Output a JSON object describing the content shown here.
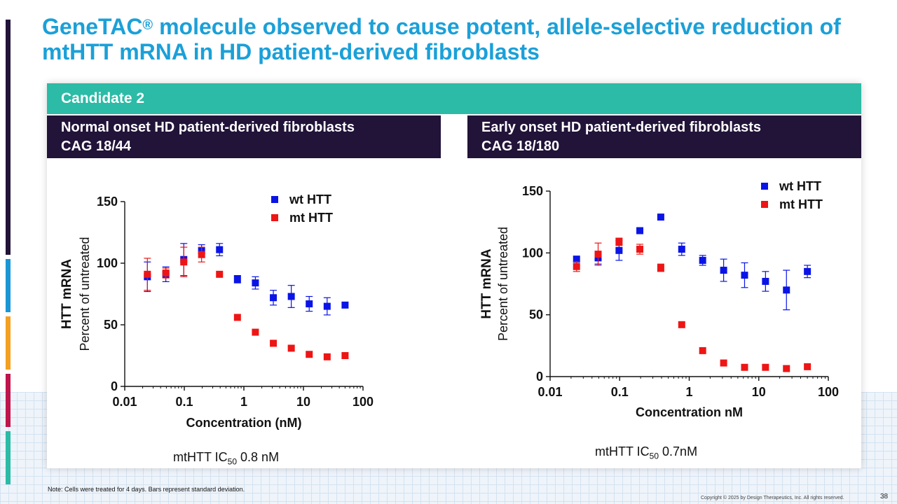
{
  "slide": {
    "title_part1": "GeneTAC",
    "title_reg": "®",
    "title_part2": " molecule observed to cause potent, allele-selective reduction of mtHTT mRNA in HD patient-derived fibroblasts",
    "candidate": "Candidate 2",
    "left_panel": {
      "line1": "Normal onset HD patient-derived fibroblasts",
      "line2": "CAG 18/44"
    },
    "right_panel": {
      "line1": "Early onset HD patient-derived fibroblasts",
      "line2": "CAG 18/180"
    },
    "left_ic50": {
      "prefix": "mtHTT IC",
      "sub": "50",
      "value": " 0.8 nM"
    },
    "right_ic50": {
      "prefix": "mtHTT IC",
      "sub": "50",
      "value": " 0.7nM"
    },
    "note": "Note: Cells were treated for 4 days. Bars represent standard deviation.",
    "copyright": "Copyright © 2025 by Design Therapeutics, Inc. All rights reserved.",
    "page_number": "38",
    "accent_colors": [
      "#221339",
      "#1b96d4",
      "#f5a020",
      "#c0154c",
      "#2bbba6"
    ]
  },
  "chart_data": [
    {
      "type": "scatter",
      "xscale": "log",
      "xlabel": "Concentration (nM)",
      "ylabel": "HTT mRNA",
      "ylabel2": "Percent of untreated",
      "xticks": [
        0.01,
        0.1,
        1,
        10,
        100
      ],
      "xtick_labels": [
        "0.01",
        "0.1",
        "1",
        "10",
        "100"
      ],
      "yticks": [
        0,
        50,
        100,
        150
      ],
      "ytick_labels": [
        "0",
        "50",
        "100",
        "150"
      ],
      "xlim": [
        0.01,
        100
      ],
      "ylim": [
        0,
        150
      ],
      "series": [
        {
          "name": "wt HTT",
          "color": "#0a14e6",
          "x": [
            0.024,
            0.049,
            0.098,
            0.195,
            0.39,
            0.78,
            1.56,
            3.125,
            6.25,
            12.5,
            25,
            50
          ],
          "y": [
            89,
            91,
            103,
            110,
            111,
            87,
            84,
            72,
            73,
            67,
            65,
            66
          ],
          "err": [
            12,
            6,
            13,
            5,
            5,
            3,
            5,
            6,
            9,
            6,
            7,
            0
          ]
        },
        {
          "name": "mt HTT",
          "color": "#ee1515",
          "x": [
            0.024,
            0.049,
            0.098,
            0.195,
            0.39,
            0.78,
            1.56,
            3.125,
            6.25,
            12.5,
            25,
            50
          ],
          "y": [
            91,
            92,
            101,
            107,
            91,
            56,
            44,
            35,
            31,
            26,
            24,
            25
          ],
          "err": [
            13,
            4,
            12,
            6,
            0,
            0,
            0,
            0,
            0,
            0,
            0,
            0
          ]
        }
      ]
    },
    {
      "type": "scatter",
      "xscale": "log",
      "xlabel": "Concentration nM",
      "ylabel": "HTT mRNA",
      "ylabel2": "Percent of untreated",
      "xticks": [
        0.01,
        0.1,
        1,
        10,
        100
      ],
      "xtick_labels": [
        "0.01",
        "0.1",
        "1",
        "10",
        "100"
      ],
      "yticks": [
        0,
        50,
        100,
        150
      ],
      "ytick_labels": [
        "0",
        "50",
        "100",
        "150"
      ],
      "xlim": [
        0.01,
        100
      ],
      "ylim": [
        0,
        150
      ],
      "series": [
        {
          "name": "wt HTT",
          "color": "#0a14e6",
          "x": [
            0.024,
            0.049,
            0.098,
            0.195,
            0.39,
            0.78,
            1.56,
            3.125,
            6.25,
            12.5,
            25,
            50
          ],
          "y": [
            95,
            96,
            102,
            118,
            129,
            103,
            94,
            86,
            82,
            77,
            70,
            85
          ],
          "err": [
            0,
            5,
            8,
            0,
            0,
            5,
            4,
            9,
            10,
            8,
            16,
            5
          ]
        },
        {
          "name": "mt HTT",
          "color": "#ee1515",
          "x": [
            0.024,
            0.049,
            0.098,
            0.195,
            0.39,
            0.78,
            1.56,
            3.125,
            6.25,
            12.5,
            25,
            50
          ],
          "y": [
            89,
            99,
            109,
            103,
            88,
            42,
            21,
            11,
            7.5,
            7.5,
            6.5,
            8
          ],
          "err": [
            4,
            9,
            3,
            4,
            3,
            0,
            0,
            0,
            0,
            0,
            0,
            0
          ]
        }
      ]
    }
  ]
}
